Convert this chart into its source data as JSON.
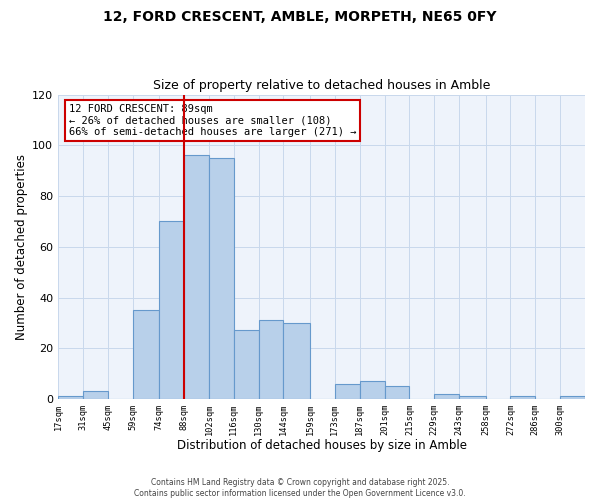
{
  "title1": "12, FORD CRESCENT, AMBLE, MORPETH, NE65 0FY",
  "title2": "Size of property relative to detached houses in Amble",
  "xlabel": "Distribution of detached houses by size in Amble",
  "ylabel": "Number of detached properties",
  "bin_labels": [
    "17sqm",
    "31sqm",
    "45sqm",
    "59sqm",
    "74sqm",
    "88sqm",
    "102sqm",
    "116sqm",
    "130sqm",
    "144sqm",
    "159sqm",
    "173sqm",
    "187sqm",
    "201sqm",
    "215sqm",
    "229sqm",
    "243sqm",
    "258sqm",
    "272sqm",
    "286sqm",
    "300sqm"
  ],
  "bin_left_edges": [
    17,
    31,
    45,
    59,
    74,
    88,
    102,
    116,
    130,
    144,
    159,
    173,
    187,
    201,
    215,
    229,
    243,
    258,
    272,
    286,
    300
  ],
  "bar_heights": [
    1,
    3,
    0,
    35,
    70,
    96,
    95,
    27,
    31,
    30,
    0,
    6,
    7,
    5,
    0,
    2,
    1,
    0,
    1,
    0,
    1
  ],
  "bar_color": "#b8d0ea",
  "bar_edge_color": "#6699cc",
  "vline_x": 88,
  "vline_color": "#cc0000",
  "annotation_line1": "12 FORD CRESCENT: 89sqm",
  "annotation_line2": "← 26% of detached houses are smaller (108)",
  "annotation_line3": "66% of semi-detached houses are larger (271) →",
  "annotation_box_color": "#ffffff",
  "annotation_box_edge": "#cc0000",
  "ylim": [
    0,
    120
  ],
  "yticks": [
    0,
    20,
    40,
    60,
    80,
    100,
    120
  ],
  "grid_color": "#c8d8ec",
  "background_color": "#eef3fb",
  "footer1": "Contains HM Land Registry data © Crown copyright and database right 2025.",
  "footer2": "Contains public sector information licensed under the Open Government Licence v3.0."
}
